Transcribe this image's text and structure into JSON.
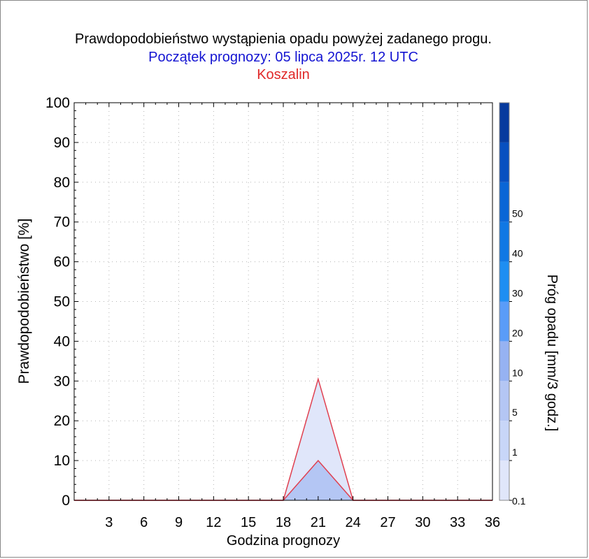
{
  "chart_data": {
    "type": "area",
    "title": "Prawdopodobieństwo wystąpienia opadu powyżej zadanego progu.",
    "subtitle": "Początek prognozy: 05 lipca 2025r. 12 UTC",
    "location": "Koszalin",
    "xlabel": "Godzina prognozy",
    "ylabel": "Prawdopodobieństwo [%]",
    "colorbar_label": "Próg opadu [mm/3 godz.]",
    "xlim": [
      0,
      36
    ],
    "ylim": [
      0,
      100
    ],
    "x_ticks": [
      3,
      6,
      9,
      12,
      15,
      18,
      21,
      24,
      27,
      30,
      33,
      36
    ],
    "y_ticks": [
      0,
      10,
      20,
      30,
      40,
      50,
      60,
      70,
      80,
      90,
      100
    ],
    "grid": true,
    "x": [
      0,
      3,
      6,
      9,
      12,
      15,
      18,
      21,
      24,
      27,
      30,
      33,
      36
    ],
    "series": [
      {
        "name": "0.1",
        "color": "#e0e6fa",
        "values": [
          0,
          0,
          0,
          0,
          0,
          0,
          0,
          30.5,
          0,
          0,
          0,
          0,
          0
        ]
      },
      {
        "name": "1",
        "color": "#b4c6f4",
        "values": [
          0,
          0,
          0,
          0,
          0,
          0,
          0,
          10,
          0,
          0,
          0,
          0,
          0
        ]
      }
    ],
    "series_line_color": "#e04050",
    "colorbar": {
      "tick_labels": [
        "0.1",
        "1",
        "5",
        "10",
        "20",
        "30",
        "40",
        "50"
      ],
      "colors": [
        "#e0e6fa",
        "#c8d6f8",
        "#b4c6f4",
        "#96b2f2",
        "#5a9cf8",
        "#1e8ef2",
        "#1078e4",
        "#0a66d6",
        "#0850c0",
        "#063a9e"
      ]
    }
  },
  "colors": {
    "title": "#000000",
    "subtitle": "#1414d2",
    "location": "#e02828",
    "grid": "#b4b4b4"
  }
}
